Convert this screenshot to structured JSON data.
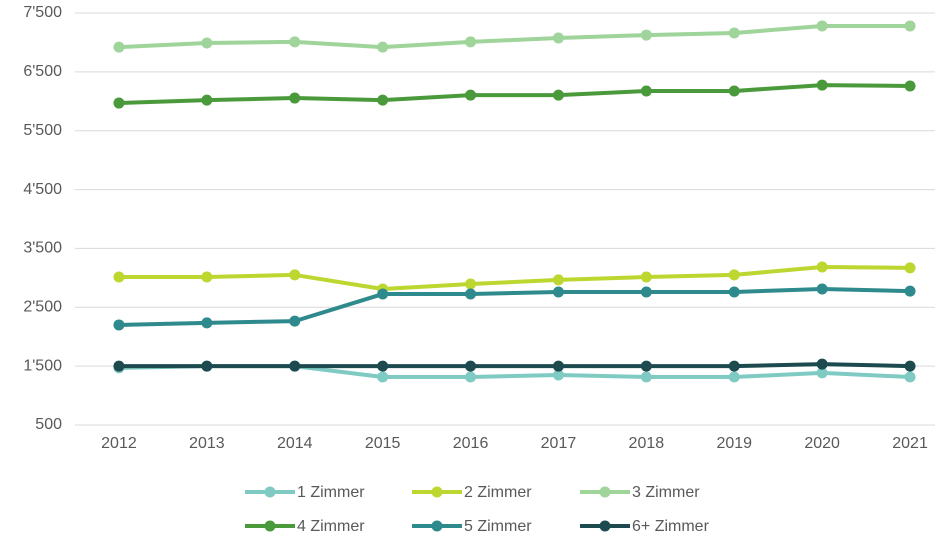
{
  "chart_data": {
    "type": "line",
    "categories": [
      "2012",
      "2013",
      "2014",
      "2015",
      "2016",
      "2017",
      "2018",
      "2019",
      "2020",
      "2021"
    ],
    "series": [
      {
        "name": "1 Zimmer",
        "color": "#7fcbc4",
        "values": [
          1470,
          1500,
          1500,
          1315,
          1315,
          1350,
          1315,
          1315,
          1385,
          1315
        ]
      },
      {
        "name": "2 Zimmer",
        "color": "#bed630",
        "values": [
          3015,
          3015,
          3050,
          2810,
          2895,
          2965,
          3015,
          3050,
          3185,
          3170
        ]
      },
      {
        "name": "3 Zimmer",
        "color": "#9fd49a",
        "values": [
          6920,
          6990,
          7010,
          6920,
          7010,
          7075,
          7125,
          7160,
          7280,
          7280
        ]
      },
      {
        "name": "4 Zimmer",
        "color": "#4a9a3c",
        "values": [
          5970,
          6020,
          6055,
          6020,
          6105,
          6105,
          6175,
          6175,
          6275,
          6260
        ]
      },
      {
        "name": "5 Zimmer",
        "color": "#2e8a8c",
        "values": [
          2200,
          2235,
          2265,
          2725,
          2725,
          2760,
          2760,
          2760,
          2810,
          2775
        ]
      },
      {
        "name": "6+ Zimmer",
        "color": "#1d4a4e",
        "values": [
          1500,
          1500,
          1500,
          1500,
          1500,
          1500,
          1500,
          1500,
          1535,
          1500
        ]
      }
    ],
    "ylim": [
      500,
      7500
    ],
    "yticks": [
      {
        "value": 500,
        "label": "500"
      },
      {
        "value": 1500,
        "label": "1'500"
      },
      {
        "value": 2500,
        "label": "2'500"
      },
      {
        "value": 3500,
        "label": "3'500"
      },
      {
        "value": 4500,
        "label": "4'500"
      },
      {
        "value": 5500,
        "label": "5'500"
      },
      {
        "value": 6500,
        "label": "6'500"
      },
      {
        "value": 7500,
        "label": "7'500"
      }
    ],
    "grid": true,
    "legend": "bottom"
  }
}
